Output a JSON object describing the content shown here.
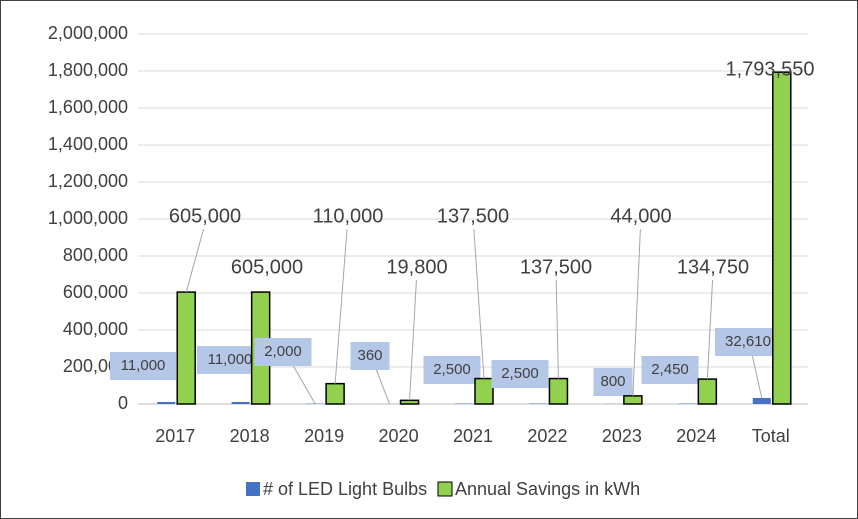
{
  "chart_data": {
    "type": "bar",
    "categories": [
      "2017",
      "2018",
      "2019",
      "2020",
      "2021",
      "2022",
      "2023",
      "2024",
      "Total"
    ],
    "series": [
      {
        "name": "# of LED Light Bulbs",
        "color": "#4472c4",
        "values": [
          11000,
          11000,
          2000,
          360,
          2500,
          2500,
          800,
          2450,
          32610
        ],
        "value_labels": [
          "11,000",
          "11,000",
          "2,000",
          "360",
          "2,500",
          "2,500",
          "800",
          "2,450",
          "32,610"
        ]
      },
      {
        "name": "Annual Savings in kWh",
        "color": "#92d050",
        "values": [
          605000,
          605000,
          110000,
          19800,
          137500,
          137500,
          44000,
          134750,
          1793550
        ],
        "value_labels": [
          "605,000",
          "605,000",
          "110,000",
          "19,800",
          "137,500",
          "137,500",
          "44,000",
          "134,750",
          "1,793,550"
        ]
      }
    ],
    "ylim": [
      0,
      2000000
    ],
    "yticks": [
      0,
      {
        "value": 200000,
        "label": "200,000"
      },
      {
        "value": 400000,
        "label": "400,000"
      },
      {
        "value": 600000,
        "label": "600,000"
      },
      {
        "value": 800000,
        "label": "800,000"
      },
      {
        "value": 1000000,
        "label": "1,000,000"
      },
      {
        "value": 1200000,
        "label": "1,200,000"
      },
      {
        "value": 1400000,
        "label": "1,400,000"
      },
      {
        "value": 1600000,
        "label": "1,600,000"
      },
      {
        "value": 1800000,
        "label": "1,800,000"
      },
      {
        "value": 2000000,
        "label": "2,000,000"
      }
    ],
    "grid": true,
    "legend": "bottom"
  }
}
